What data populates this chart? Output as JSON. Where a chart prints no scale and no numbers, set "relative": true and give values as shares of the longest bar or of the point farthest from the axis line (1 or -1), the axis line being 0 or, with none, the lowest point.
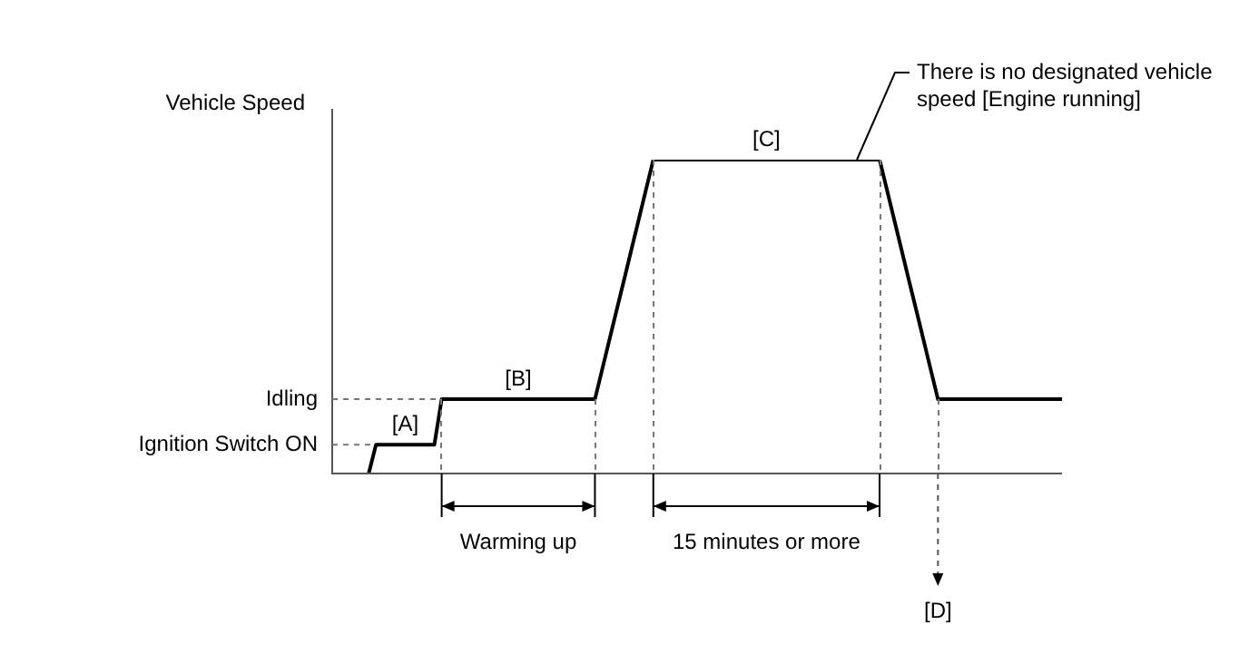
{
  "chart_data": {
    "type": "line",
    "relative": true,
    "ylabel": "Vehicle Speed",
    "marker": "none",
    "legend": false,
    "categories": [
      null,
      null,
      null,
      null,
      null,
      null,
      null,
      null,
      null,
      null,
      null,
      null,
      null,
      null,
      null,
      null,
      null,
      null,
      null,
      null,
      null,
      null,
      null,
      null,
      null,
      null,
      null,
      null,
      null,
      null,
      null,
      null,
      null,
      null,
      null,
      null,
      null,
      null,
      null,
      null,
      null,
      null,
      null,
      null,
      null,
      null,
      null,
      null,
      null,
      null,
      null,
      null,
      null,
      null,
      null,
      null,
      null,
      null,
      null,
      null,
      null,
      null,
      null,
      null,
      null,
      null,
      null,
      null,
      null,
      null,
      null,
      null,
      null,
      null,
      null,
      null,
      null,
      null,
      null,
      null,
      null,
      null,
      null,
      null,
      null,
      null,
      null,
      null,
      null,
      null,
      null,
      null,
      null,
      null,
      null,
      null,
      null,
      null,
      null,
      null,
      null
    ],
    "series": [
      {
        "color": "#000000",
        "values": [
          null,
          null,
          null,
          null,
          null,
          0,
          0.092,
          0.092,
          0.092,
          0.092,
          0.092,
          0.092,
          0.092,
          0.092,
          0.092,
          0.237,
          0.237,
          0.237,
          0.237,
          0.237,
          0.237,
          0.237,
          0.237,
          0.237,
          0.237,
          0.237,
          0.237,
          0.237,
          0.237,
          0.237,
          0.237,
          0.237,
          0.237,
          0.237,
          0.237,
          0.237,
          0.237,
          0.332,
          0.428,
          0.523,
          0.618,
          0.714,
          0.809,
          0.905,
          1,
          1,
          1,
          1,
          1,
          1,
          1,
          1,
          1,
          1,
          1,
          1,
          1,
          1,
          1,
          1,
          1,
          1,
          1,
          1,
          1,
          1,
          1,
          1,
          1,
          1,
          1,
          1,
          1,
          1,
          1,
          1,
          0.905,
          0.809,
          0.714,
          0.618,
          0.523,
          0.428,
          0.332,
          0.237,
          0.237,
          0.237,
          0.237,
          0.237,
          0.237,
          0.237,
          0.237,
          0.237,
          0.237,
          0.237,
          0.237,
          0.237,
          0.237,
          0.237,
          0.237,
          0.237,
          0.237
        ]
      }
    ],
    "ref_lines": [
      {
        "axis": "y",
        "value": 0.237,
        "label": "Idling",
        "line_style": "dashed"
      },
      {
        "axis": "y",
        "value": 0.092,
        "label": "Ignition Switch ON",
        "line_style": "dashed"
      }
    ],
    "annotations": [
      "[A]",
      "[B]",
      "[C]",
      "There is no designated vehicle speed [Engine running]",
      "[D]",
      "Warming up",
      "15 minutes or more"
    ]
  }
}
